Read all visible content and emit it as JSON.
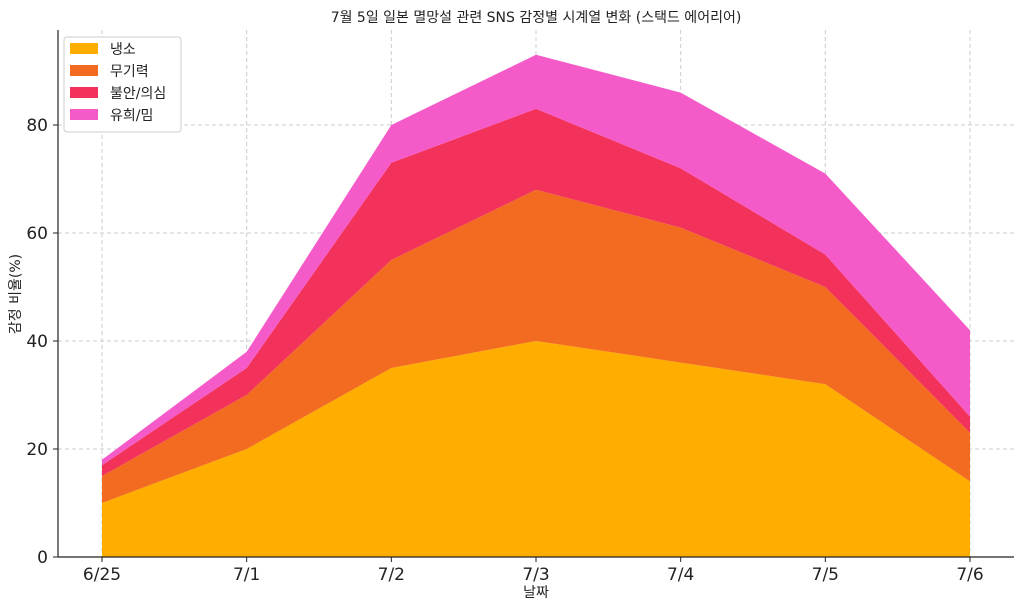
{
  "chart_data": {
    "type": "area",
    "stacked": true,
    "title": "7월 5일 일본 멸망설 관련 SNS 감정별 시계열 변화 (스택드 에어리어)",
    "xlabel": "날짜",
    "ylabel": "감정 비율(%)",
    "categories": [
      "6/25",
      "7/1",
      "7/2",
      "7/3",
      "7/4",
      "7/5",
      "7/6"
    ],
    "ylim": [
      0,
      98
    ],
    "yticks": [
      0,
      20,
      40,
      60,
      80
    ],
    "grid": true,
    "legend_position": "top-left",
    "series": [
      {
        "name": "냉소",
        "color": "#FFAE00",
        "values": [
          10,
          20,
          35,
          40,
          36,
          32,
          14
        ]
      },
      {
        "name": "무기력",
        "color": "#F26B21",
        "values": [
          5,
          10,
          20,
          28,
          25,
          18,
          9
        ]
      },
      {
        "name": "불안/의심",
        "color": "#F2325A",
        "values": [
          2,
          5,
          18,
          15,
          11,
          6,
          3
        ]
      },
      {
        "name": "유희/밈",
        "color": "#F55BC8",
        "values": [
          1,
          3,
          7,
          10,
          14,
          15,
          16
        ]
      }
    ]
  }
}
